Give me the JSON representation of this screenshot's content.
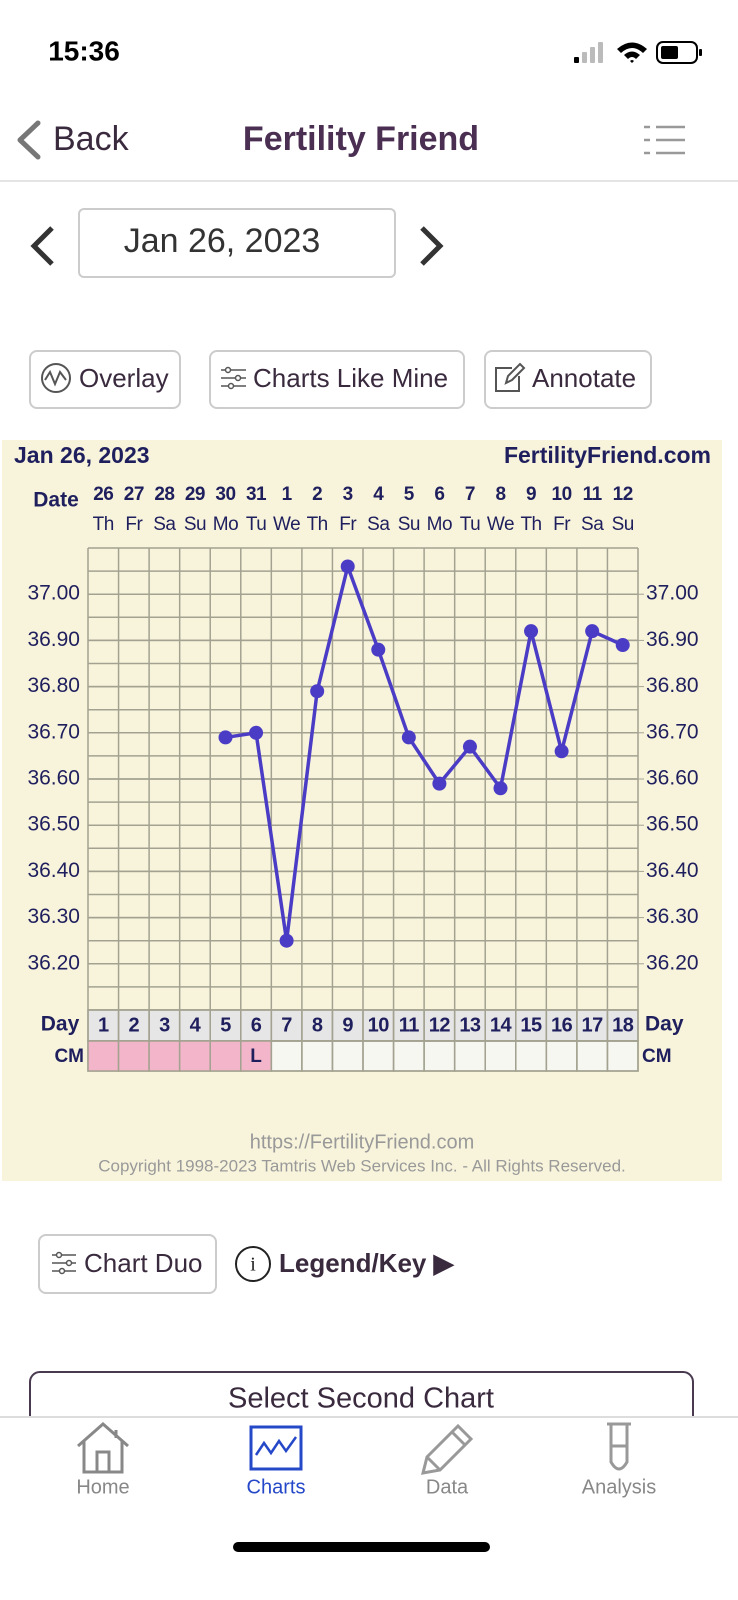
{
  "status_bar": {
    "time": "15:36"
  },
  "nav": {
    "back": "Back",
    "title": "Fertility Friend"
  },
  "date_picker": {
    "date": "Jan 26, 2023"
  },
  "toolbar": {
    "buttons": [
      "Overlay",
      "Charts Like Mine",
      "Annotate"
    ]
  },
  "chart_data": {
    "type": "line",
    "title": "Jan 26, 2023",
    "site": "FertilityFriend.com",
    "date_label": "Date",
    "dates": [
      "26",
      "27",
      "28",
      "29",
      "30",
      "31",
      "1",
      "2",
      "3",
      "4",
      "5",
      "6",
      "7",
      "8",
      "9",
      "10",
      "11",
      "12"
    ],
    "weekdays": [
      "Th",
      "Fr",
      "Sa",
      "Su",
      "Mo",
      "Tu",
      "We",
      "Th",
      "Fr",
      "Sa",
      "Su",
      "Mo",
      "Tu",
      "We",
      "Th",
      "Fr",
      "Sa",
      "Su"
    ],
    "day_label": "Day",
    "categories": [
      "1",
      "2",
      "3",
      "4",
      "5",
      "6",
      "7",
      "8",
      "9",
      "10",
      "11",
      "12",
      "13",
      "14",
      "15",
      "16",
      "17",
      "18"
    ],
    "cm_label": "CM",
    "cm": [
      null,
      null,
      null,
      null,
      null,
      "L",
      null,
      null,
      null,
      null,
      null,
      null,
      null,
      null,
      null,
      null,
      null,
      null
    ],
    "cm_highlight": [
      true,
      true,
      true,
      true,
      true,
      true,
      false,
      false,
      false,
      false,
      false,
      false,
      false,
      false,
      false,
      false,
      false,
      false
    ],
    "cm_color": "#f3b5c9",
    "series": [
      {
        "color": "#4b3cc6",
        "values": [
          null,
          null,
          null,
          null,
          36.69,
          36.7,
          36.25,
          36.79,
          37.06,
          36.88,
          36.69,
          36.59,
          36.67,
          36.58,
          36.92,
          36.66,
          36.92,
          36.89
        ]
      }
    ],
    "ylim": [
      36.1,
      37.1
    ],
    "yticks": [
      {
        "value": 36.2,
        "label": "36.20"
      },
      {
        "value": 36.3,
        "label": "36.30"
      },
      {
        "value": 36.4,
        "label": "36.40"
      },
      {
        "value": 36.5,
        "label": "36.50"
      },
      {
        "value": 36.6,
        "label": "36.60"
      },
      {
        "value": 36.7,
        "label": "36.70"
      },
      {
        "value": 36.8,
        "label": "36.80"
      },
      {
        "value": 36.9,
        "label": "36.90"
      },
      {
        "value": 37.0,
        "label": "37.00"
      }
    ],
    "grid": true,
    "footer": [
      "https://FertilityFriend.com",
      "Copyright 1998-2023 Tamtris Web Services Inc. - All Rights Reserved."
    ]
  },
  "actions": {
    "chart_duo": "Chart Duo",
    "legend": "Legend/Key ▶",
    "select": "Select Second Chart"
  },
  "tab_bar": {
    "tabs": [
      "Home",
      "Charts",
      "Data",
      "Analysis"
    ]
  }
}
